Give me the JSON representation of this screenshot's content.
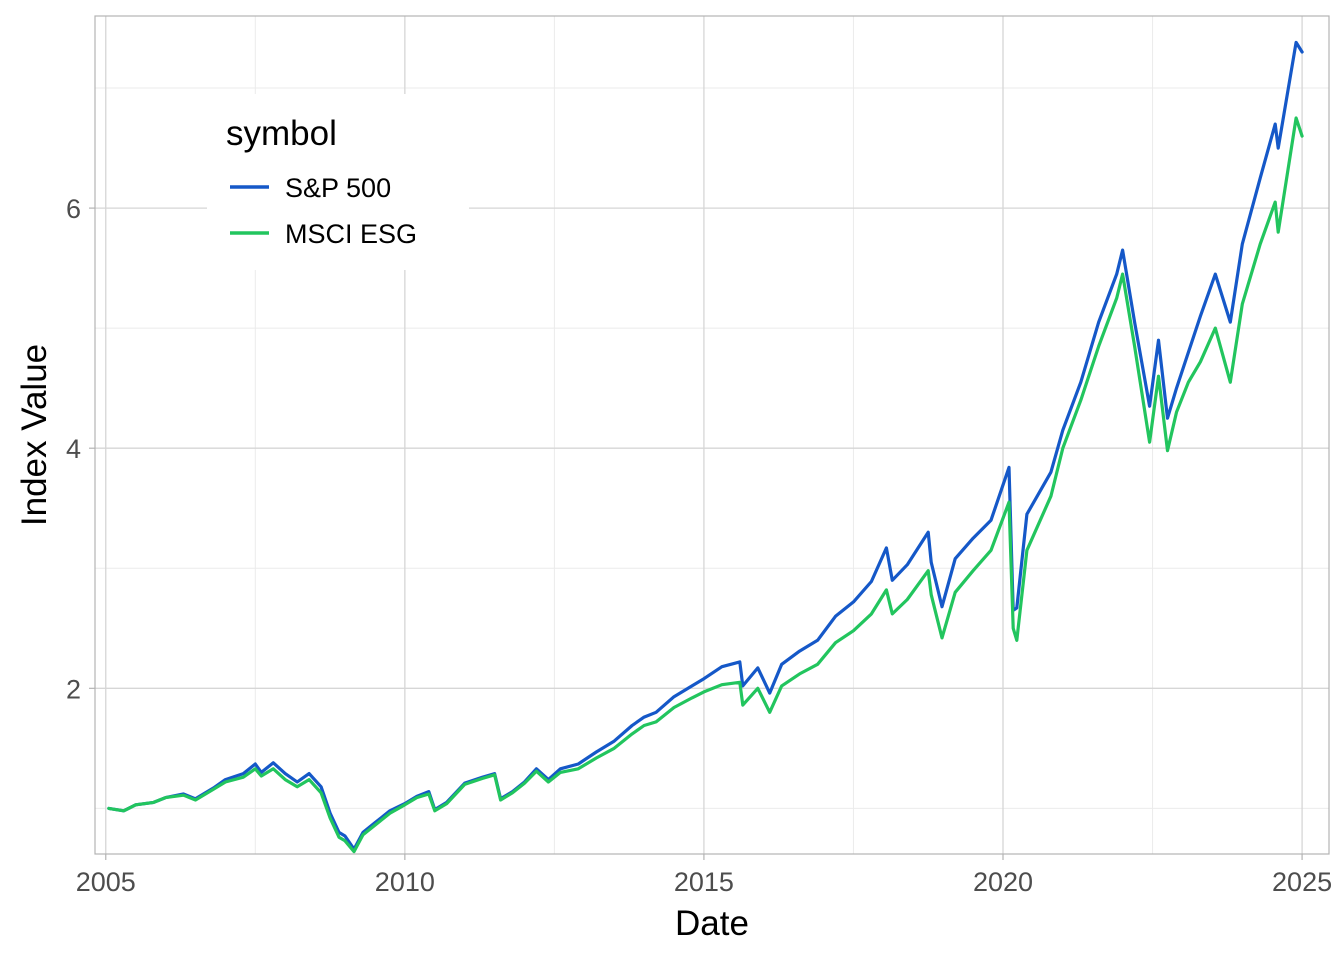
{
  "chart_data": {
    "type": "line",
    "title": "",
    "xlabel": "Date",
    "ylabel": "Index Value",
    "xlim": [
      2004.82,
      2025.45
    ],
    "ylim": [
      0.62,
      7.6
    ],
    "x_ticks": [
      2005,
      2010,
      2015,
      2020,
      2025
    ],
    "x_tick_labels": [
      "2005",
      "2010",
      "2015",
      "2020",
      "2025"
    ],
    "y_ticks": [
      2,
      4,
      6
    ],
    "y_tick_labels": [
      "2",
      "4",
      "6"
    ],
    "grid": true,
    "legend": {
      "title": "symbol",
      "position": "top-left",
      "entries": [
        "S&P 500",
        "MSCI ESG"
      ]
    },
    "series": [
      {
        "name": "S&P 500",
        "color": "#1558C8",
        "points": [
          [
            2005.05,
            1.0
          ],
          [
            2005.3,
            0.98
          ],
          [
            2005.5,
            1.03
          ],
          [
            2005.8,
            1.05
          ],
          [
            2006.0,
            1.09
          ],
          [
            2006.3,
            1.12
          ],
          [
            2006.5,
            1.08
          ],
          [
            2006.8,
            1.17
          ],
          [
            2007.0,
            1.24
          ],
          [
            2007.3,
            1.29
          ],
          [
            2007.5,
            1.37
          ],
          [
            2007.6,
            1.3
          ],
          [
            2007.8,
            1.38
          ],
          [
            2008.0,
            1.29
          ],
          [
            2008.2,
            1.22
          ],
          [
            2008.4,
            1.29
          ],
          [
            2008.6,
            1.18
          ],
          [
            2008.75,
            0.96
          ],
          [
            2008.9,
            0.8
          ],
          [
            2009.0,
            0.77
          ],
          [
            2009.15,
            0.66
          ],
          [
            2009.3,
            0.8
          ],
          [
            2009.5,
            0.88
          ],
          [
            2009.75,
            0.98
          ],
          [
            2010.0,
            1.04
          ],
          [
            2010.2,
            1.1
          ],
          [
            2010.4,
            1.14
          ],
          [
            2010.5,
            0.99
          ],
          [
            2010.7,
            1.05
          ],
          [
            2011.0,
            1.21
          ],
          [
            2011.3,
            1.26
          ],
          [
            2011.5,
            1.29
          ],
          [
            2011.6,
            1.08
          ],
          [
            2011.8,
            1.14
          ],
          [
            2012.0,
            1.22
          ],
          [
            2012.2,
            1.33
          ],
          [
            2012.4,
            1.24
          ],
          [
            2012.6,
            1.33
          ],
          [
            2012.9,
            1.37
          ],
          [
            2013.2,
            1.47
          ],
          [
            2013.5,
            1.56
          ],
          [
            2013.8,
            1.69
          ],
          [
            2014.0,
            1.76
          ],
          [
            2014.2,
            1.8
          ],
          [
            2014.5,
            1.93
          ],
          [
            2014.8,
            2.02
          ],
          [
            2015.0,
            2.08
          ],
          [
            2015.3,
            2.18
          ],
          [
            2015.6,
            2.22
          ],
          [
            2015.65,
            2.02
          ],
          [
            2015.9,
            2.17
          ],
          [
            2016.1,
            1.96
          ],
          [
            2016.3,
            2.2
          ],
          [
            2016.6,
            2.31
          ],
          [
            2016.9,
            2.4
          ],
          [
            2017.2,
            2.6
          ],
          [
            2017.5,
            2.72
          ],
          [
            2017.8,
            2.89
          ],
          [
            2018.05,
            3.17
          ],
          [
            2018.15,
            2.9
          ],
          [
            2018.4,
            3.03
          ],
          [
            2018.75,
            3.3
          ],
          [
            2018.8,
            3.05
          ],
          [
            2018.98,
            2.68
          ],
          [
            2019.2,
            3.08
          ],
          [
            2019.5,
            3.25
          ],
          [
            2019.8,
            3.4
          ],
          [
            2020.1,
            3.84
          ],
          [
            2020.17,
            2.65
          ],
          [
            2020.23,
            2.67
          ],
          [
            2020.4,
            3.45
          ],
          [
            2020.8,
            3.8
          ],
          [
            2021.0,
            4.15
          ],
          [
            2021.3,
            4.55
          ],
          [
            2021.6,
            5.05
          ],
          [
            2021.9,
            5.45
          ],
          [
            2022.0,
            5.65
          ],
          [
            2022.2,
            5.05
          ],
          [
            2022.45,
            4.35
          ],
          [
            2022.6,
            4.9
          ],
          [
            2022.75,
            4.25
          ],
          [
            2022.9,
            4.5
          ],
          [
            2023.1,
            4.8
          ],
          [
            2023.3,
            5.1
          ],
          [
            2023.55,
            5.45
          ],
          [
            2023.8,
            5.05
          ],
          [
            2024.0,
            5.7
          ],
          [
            2024.3,
            6.25
          ],
          [
            2024.55,
            6.7
          ],
          [
            2024.6,
            6.5
          ],
          [
            2024.9,
            7.38
          ],
          [
            2025.0,
            7.3
          ]
        ]
      },
      {
        "name": "MSCI ESG",
        "color": "#22C55E",
        "points": [
          [
            2005.05,
            1.0
          ],
          [
            2005.3,
            0.98
          ],
          [
            2005.5,
            1.03
          ],
          [
            2005.8,
            1.05
          ],
          [
            2006.0,
            1.09
          ],
          [
            2006.3,
            1.11
          ],
          [
            2006.5,
            1.07
          ],
          [
            2006.8,
            1.16
          ],
          [
            2007.0,
            1.22
          ],
          [
            2007.3,
            1.26
          ],
          [
            2007.5,
            1.33
          ],
          [
            2007.6,
            1.27
          ],
          [
            2007.8,
            1.33
          ],
          [
            2008.0,
            1.24
          ],
          [
            2008.2,
            1.18
          ],
          [
            2008.4,
            1.24
          ],
          [
            2008.6,
            1.13
          ],
          [
            2008.75,
            0.92
          ],
          [
            2008.9,
            0.76
          ],
          [
            2009.0,
            0.73
          ],
          [
            2009.15,
            0.64
          ],
          [
            2009.3,
            0.78
          ],
          [
            2009.5,
            0.86
          ],
          [
            2009.75,
            0.96
          ],
          [
            2010.0,
            1.03
          ],
          [
            2010.2,
            1.09
          ],
          [
            2010.4,
            1.12
          ],
          [
            2010.5,
            0.98
          ],
          [
            2010.7,
            1.04
          ],
          [
            2011.0,
            1.2
          ],
          [
            2011.3,
            1.25
          ],
          [
            2011.5,
            1.28
          ],
          [
            2011.6,
            1.07
          ],
          [
            2011.8,
            1.13
          ],
          [
            2012.0,
            1.21
          ],
          [
            2012.2,
            1.31
          ],
          [
            2012.4,
            1.22
          ],
          [
            2012.6,
            1.3
          ],
          [
            2012.9,
            1.33
          ],
          [
            2013.2,
            1.42
          ],
          [
            2013.5,
            1.5
          ],
          [
            2013.8,
            1.62
          ],
          [
            2014.0,
            1.69
          ],
          [
            2014.2,
            1.72
          ],
          [
            2014.5,
            1.84
          ],
          [
            2014.8,
            1.92
          ],
          [
            2015.0,
            1.97
          ],
          [
            2015.3,
            2.03
          ],
          [
            2015.6,
            2.05
          ],
          [
            2015.65,
            1.86
          ],
          [
            2015.9,
            2.0
          ],
          [
            2016.1,
            1.8
          ],
          [
            2016.3,
            2.02
          ],
          [
            2016.6,
            2.12
          ],
          [
            2016.9,
            2.2
          ],
          [
            2017.2,
            2.38
          ],
          [
            2017.5,
            2.48
          ],
          [
            2017.8,
            2.62
          ],
          [
            2018.05,
            2.82
          ],
          [
            2018.15,
            2.62
          ],
          [
            2018.4,
            2.74
          ],
          [
            2018.75,
            2.98
          ],
          [
            2018.8,
            2.78
          ],
          [
            2018.98,
            2.42
          ],
          [
            2019.2,
            2.8
          ],
          [
            2019.5,
            2.98
          ],
          [
            2019.8,
            3.15
          ],
          [
            2020.1,
            3.55
          ],
          [
            2020.17,
            2.5
          ],
          [
            2020.23,
            2.4
          ],
          [
            2020.4,
            3.15
          ],
          [
            2020.8,
            3.6
          ],
          [
            2021.0,
            4.0
          ],
          [
            2021.3,
            4.4
          ],
          [
            2021.6,
            4.85
          ],
          [
            2021.9,
            5.25
          ],
          [
            2022.0,
            5.45
          ],
          [
            2022.2,
            4.85
          ],
          [
            2022.45,
            4.05
          ],
          [
            2022.6,
            4.6
          ],
          [
            2022.75,
            3.98
          ],
          [
            2022.9,
            4.3
          ],
          [
            2023.1,
            4.55
          ],
          [
            2023.3,
            4.72
          ],
          [
            2023.55,
            5.0
          ],
          [
            2023.8,
            4.55
          ],
          [
            2024.0,
            5.2
          ],
          [
            2024.3,
            5.7
          ],
          [
            2024.55,
            6.05
          ],
          [
            2024.6,
            5.8
          ],
          [
            2024.9,
            6.75
          ],
          [
            2025.0,
            6.6
          ]
        ]
      }
    ]
  }
}
